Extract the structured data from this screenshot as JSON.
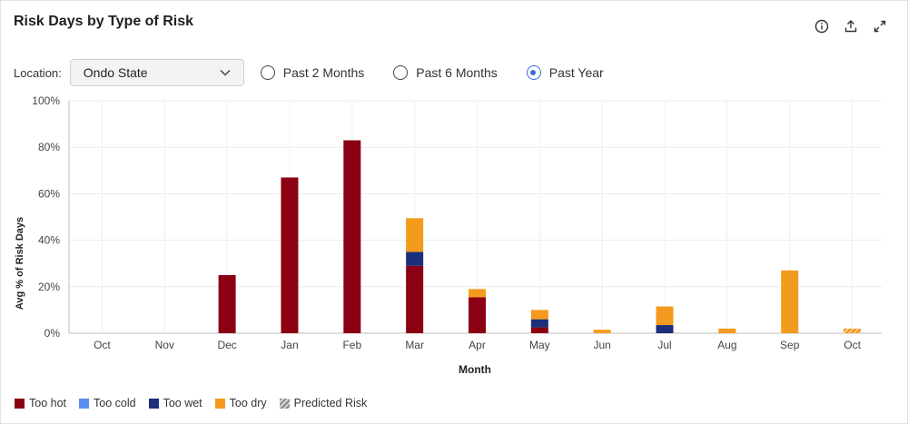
{
  "title": "Risk Days by Type of Risk",
  "location": {
    "label": "Location:",
    "value": "Ondo State"
  },
  "periods": [
    {
      "label": "Past 2 Months",
      "selected": false
    },
    {
      "label": "Past 6 Months",
      "selected": false
    },
    {
      "label": "Past Year",
      "selected": true
    }
  ],
  "tools": [
    "info-icon",
    "export-icon",
    "expand-icon"
  ],
  "legend": [
    {
      "label": "Too hot",
      "color": "#8b0012"
    },
    {
      "label": "Too cold",
      "color": "#5b8def"
    },
    {
      "label": "Too wet",
      "color": "#1b2f7a"
    },
    {
      "label": "Too dry",
      "color": "#f39b1c"
    },
    {
      "label": "Predicted Risk",
      "color": "#999999",
      "pattern": "hatch"
    }
  ],
  "chart_data": {
    "type": "bar",
    "stacked": true,
    "xlabel": "Month",
    "ylabel": "Avg % of Risk Days",
    "ylim": [
      0,
      100
    ],
    "yticks": [
      "0%",
      "20%",
      "40%",
      "60%",
      "80%",
      "100%"
    ],
    "categories": [
      "Oct",
      "Nov",
      "Dec",
      "Jan",
      "Feb",
      "Mar",
      "Apr",
      "May",
      "Jun",
      "Jul",
      "Aug",
      "Sep",
      "Oct"
    ],
    "series": [
      {
        "name": "Too hot",
        "color": "#8b0012",
        "values": [
          0,
          0,
          25,
          67,
          83,
          29,
          15.5,
          2.5,
          0,
          0,
          0,
          0,
          0
        ]
      },
      {
        "name": "Too cold",
        "color": "#5b8def",
        "values": [
          0,
          0,
          0,
          0,
          0,
          0,
          0,
          0,
          0,
          0,
          0,
          0,
          0
        ]
      },
      {
        "name": "Too wet",
        "color": "#1b2f7a",
        "values": [
          0,
          0,
          0,
          0,
          0,
          6,
          0,
          3.5,
          0,
          3.5,
          0,
          0,
          0
        ]
      },
      {
        "name": "Too dry",
        "color": "#f39b1c",
        "values": [
          0,
          0,
          0,
          0,
          0,
          14.5,
          3.5,
          4,
          1.5,
          8,
          2,
          27,
          2
        ]
      }
    ],
    "predicted_categories": [
      "Oct"
    ],
    "grid": true,
    "legend_position": "bottom-left"
  }
}
